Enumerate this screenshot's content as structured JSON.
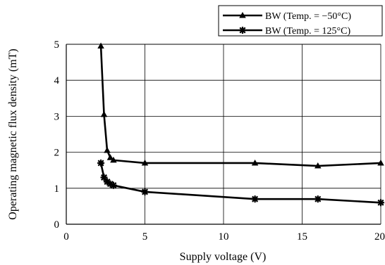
{
  "chart_data": {
    "type": "line",
    "xlabel": "Supply voltage  (V)",
    "ylabel": "Operating magnetic flux density  (mT)",
    "xlim": [
      0,
      20
    ],
    "ylim": [
      0,
      5
    ],
    "x_ticks": [
      "0",
      "5",
      "10",
      "15",
      "20"
    ],
    "y_ticks": [
      "0",
      "1",
      "2",
      "3",
      "4",
      "5"
    ],
    "grid": true,
    "legend_position": "top-right",
    "series": [
      {
        "name": "BW (Temp. = −50°C)",
        "marker": "triangle",
        "color": "#000000",
        "x": [
          2.2,
          2.4,
          2.6,
          2.8,
          3.0,
          5.0,
          12.0,
          16.0,
          20.0
        ],
        "y": [
          4.95,
          3.05,
          2.05,
          1.85,
          1.78,
          1.7,
          1.7,
          1.62,
          1.7
        ]
      },
      {
        "name": "BW (Temp. = 125°C)",
        "marker": "asterisk",
        "color": "#000000",
        "x": [
          2.2,
          2.4,
          2.6,
          2.8,
          3.0,
          5.0,
          12.0,
          16.0,
          20.0
        ],
        "y": [
          1.7,
          1.3,
          1.18,
          1.12,
          1.08,
          0.9,
          0.7,
          0.7,
          0.6
        ]
      }
    ]
  }
}
